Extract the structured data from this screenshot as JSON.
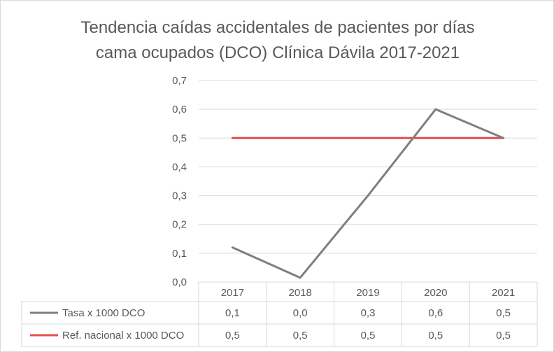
{
  "chart_data": {
    "type": "line",
    "title": "Tendencia caídas accidentales de pacientes por días cama ocupados (DCO) Clínica Dávila 2017-2021",
    "title_lines": [
      "Tendencia caídas accidentales de pacientes por días",
      "cama ocupados (DCO) Clínica Dávila 2017-2021"
    ],
    "categories": [
      "2017",
      "2018",
      "2019",
      "2020",
      "2021"
    ],
    "series": [
      {
        "name": "Tasa x 1000 DCO",
        "values": [
          0.12,
          0.015,
          0.3,
          0.6,
          0.5
        ],
        "labels": [
          "0,1",
          "0,0",
          "0,3",
          "0,6",
          "0,5"
        ],
        "color": "#7f7f7f"
      },
      {
        "name": "Ref. nacional x 1000 DCO",
        "values": [
          0.5,
          0.5,
          0.5,
          0.5,
          0.5
        ],
        "labels": [
          "0,5",
          "0,5",
          "0,5",
          "0,5",
          "0,5"
        ],
        "color": "#e84c4c"
      }
    ],
    "ylim": [
      0,
      0.7
    ],
    "y_ticks": [
      "0,0",
      "0,1",
      "0,2",
      "0,3",
      "0,4",
      "0,5",
      "0,6",
      "0,7"
    ],
    "grid": true,
    "data_table": true
  }
}
